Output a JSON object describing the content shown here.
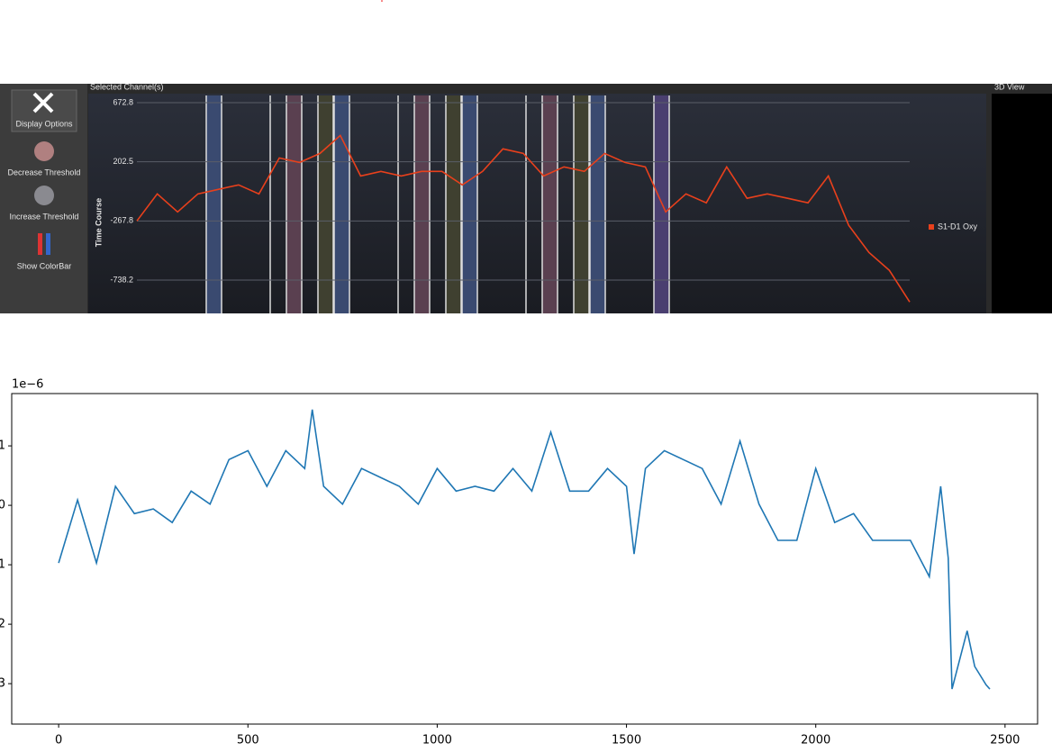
{
  "toolbar": {
    "buttons": [
      "Display Options",
      "Decrease Threshold",
      "Increase Threshold",
      "Show ColorBar"
    ]
  },
  "panels": {
    "left_title": "Selected Channel(s)",
    "right_title": "3D View"
  },
  "chart_data": [
    {
      "type": "line",
      "ylabel": "Time Course",
      "ylim": [
        -996,
        730
      ],
      "yticks": [
        672.8,
        202.5,
        -267.8,
        -738.2
      ],
      "grid": true,
      "legend": "right",
      "series": [
        {
          "name": "S1-D1 Oxy",
          "color": "#e8401c",
          "values": [
            -267.8,
            -53,
            -196,
            -53,
            -17,
            19,
            -53,
            233,
            197,
            269,
            412,
            90,
            126,
            90,
            126,
            126,
            19,
            126,
            305,
            269,
            90,
            162,
            126,
            269,
            197,
            162,
            -196,
            -53,
            -124,
            162,
            -88,
            -53,
            -88,
            -124,
            90,
            -303,
            -518,
            -661,
            -912
          ]
        }
      ]
    },
    {
      "type": "line",
      "offset_label": "1e−6",
      "xlim": [
        -124,
        2586
      ],
      "ylim": [
        -3.68,
        1.88
      ],
      "xticks": [
        0,
        500,
        1000,
        1500,
        2000,
        2500
      ],
      "yticks": [
        {
          "value": 1,
          "label": "1"
        },
        0,
        {
          "value": -1,
          "label": "1"
        },
        {
          "value": -2,
          "label": "2"
        },
        {
          "value": -3,
          "label": "3"
        }
      ],
      "x": [
        0,
        50,
        100,
        150,
        200,
        250,
        300,
        350,
        400,
        450,
        500,
        550,
        600,
        650,
        670,
        700,
        750,
        800,
        850,
        900,
        950,
        1000,
        1050,
        1100,
        1150,
        1200,
        1250,
        1300,
        1350,
        1400,
        1450,
        1500,
        1520,
        1550,
        1600,
        1650,
        1700,
        1750,
        1800,
        1850,
        1900,
        1950,
        2000,
        2050,
        2100,
        2150,
        2200,
        2250,
        2300,
        2330,
        2350,
        2360,
        2400,
        2420,
        2450,
        2460
      ],
      "series": [
        {
          "color": "#1f77b4",
          "values": [
            -0.97,
            0.09,
            -0.97,
            0.32,
            -0.14,
            -0.06,
            -0.29,
            0.24,
            0.02,
            0.77,
            0.92,
            0.32,
            0.92,
            0.62,
            1.61,
            0.32,
            0.02,
            0.62,
            0.47,
            0.32,
            0.02,
            0.62,
            0.24,
            0.32,
            0.24,
            0.62,
            0.24,
            1.23,
            0.24,
            0.24,
            0.62,
            0.32,
            -0.82,
            0.62,
            0.92,
            0.77,
            0.62,
            0.02,
            1.08,
            0.02,
            -0.59,
            -0.59,
            0.62,
            -0.29,
            -0.14,
            -0.59,
            -0.59,
            -0.59,
            -1.2,
            0.32,
            -0.89,
            -3.09,
            -2.11,
            -2.71,
            -3.02,
            -3.09
          ]
        }
      ]
    }
  ]
}
